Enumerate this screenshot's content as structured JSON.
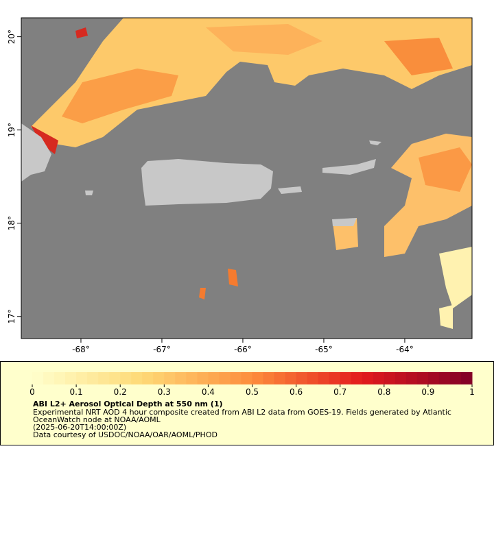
{
  "map": {
    "xlim": [
      -68.737,
      -63.169
    ],
    "ylim": [
      16.763,
      20.203
    ],
    "xticks": [
      {
        "value": -68,
        "label": "-68°"
      },
      {
        "value": -67,
        "label": "-67°"
      },
      {
        "value": -66,
        "label": "-66°"
      },
      {
        "value": -65,
        "label": "-65°"
      },
      {
        "value": -64,
        "label": "-64°"
      }
    ],
    "yticks": [
      {
        "value": 17,
        "label": "17°"
      },
      {
        "value": 18,
        "label": "18°"
      },
      {
        "value": 19,
        "label": "19°"
      },
      {
        "value": 20,
        "label": "20°"
      }
    ]
  },
  "colorbar": {
    "lim": [
      0,
      1
    ],
    "ticks": [
      0,
      0.1,
      0.2,
      0.3,
      0.4,
      0.5,
      0.6,
      0.7,
      0.8,
      0.9,
      1
    ]
  },
  "legend": {
    "title": "ABI L2+ Aerosol Optical Depth at 550 nm (1)",
    "lines": [
      "Experimental NRT AOD 4 hour composite created from ABI L2 data from GOES-19. Fields generated by Atlantic",
      "OceanWatch node at NOAA/AOML",
      "(2025-06-20T14:00:00Z)",
      "Data courtesy of USDOC/NOAA/OAR/AOML/PHOD"
    ]
  }
}
